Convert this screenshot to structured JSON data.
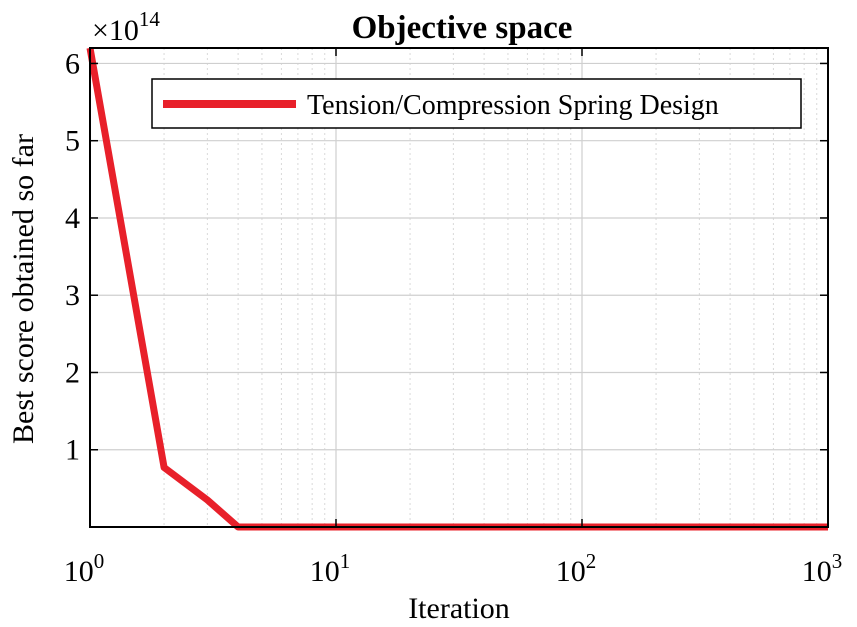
{
  "chart_data": {
    "type": "line",
    "title": "Objective space",
    "xlabel": "Iteration",
    "ylabel": "Best score obtained so far",
    "xscale": "log",
    "xlim": [
      1,
      1000
    ],
    "ylim": [
      0,
      6.2
    ],
    "y_multiplier": {
      "base": "×10",
      "exponent": "14"
    },
    "x_ticks": [
      {
        "value": 1,
        "base": "10",
        "exp": "0"
      },
      {
        "value": 10,
        "base": "10",
        "exp": "1"
      },
      {
        "value": 100,
        "base": "10",
        "exp": "2"
      },
      {
        "value": 1000,
        "base": "10",
        "exp": "3"
      }
    ],
    "y_ticks": [
      1,
      2,
      3,
      4,
      5,
      6
    ],
    "grid": true,
    "legend_position": "top-right",
    "series": [
      {
        "name": "Tension/Compression Spring Design",
        "color": "#e8202a",
        "x": [
          1,
          2,
          3,
          4,
          5,
          10,
          100,
          1000
        ],
        "y": [
          6.2,
          0.77,
          0.35,
          0.0,
          0.0,
          0.0,
          0.0,
          0.0
        ]
      }
    ]
  }
}
